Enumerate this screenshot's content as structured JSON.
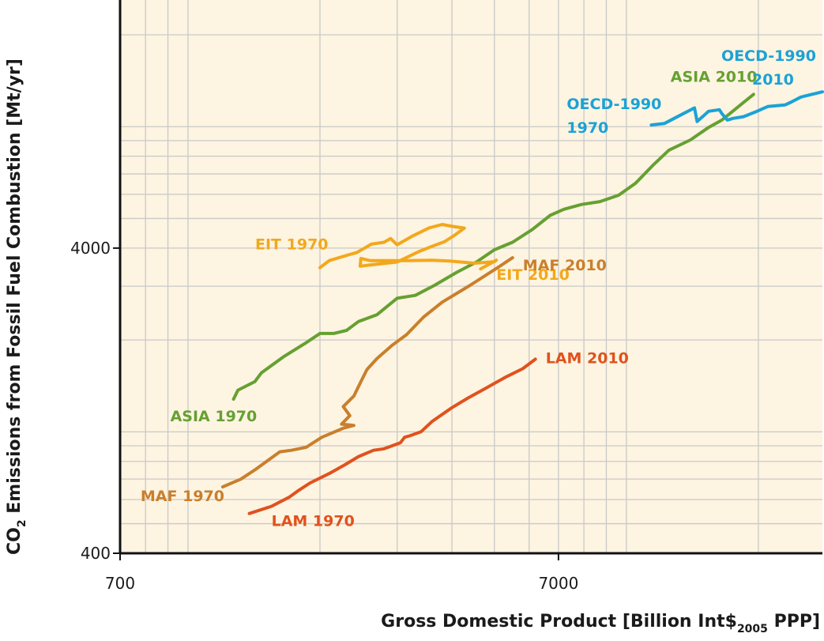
{
  "chart_data": {
    "type": "line",
    "xlabel": "Gross Domestic Product [Billion Int$",
    "xlabel_sub": "2005",
    "xlabel_tail": " PPP]",
    "ylabel_pre": "CO",
    "ylabel_sub": "2",
    "ylabel_post": " Emissions from Fossil Fuel Combustion [Mt/yr]",
    "x_scale": "log",
    "y_scale": "log",
    "xlim": [
      700,
      28000
    ],
    "ylim": [
      400,
      26000
    ],
    "x_ticks": [
      700,
      7000
    ],
    "y_ticks": [
      400,
      4000
    ],
    "grid": true,
    "background": "#fdf4e1",
    "grid_color": "#c9c9c9",
    "series": [
      {
        "name": "ASIA",
        "color": "#66a032",
        "start_label": "ASIA 1970",
        "end_label": "ASIA 2010",
        "x": [
          1270,
          1300,
          1420,
          1470,
          1650,
          1850,
          2000,
          2150,
          2300,
          2450,
          2700,
          3000,
          3300,
          3650,
          4100,
          4550,
          5000,
          5500,
          6100,
          6700,
          7200,
          7900,
          8700,
          9600,
          10500,
          11500,
          12500,
          14000,
          15400,
          16500,
          17500,
          18800,
          19500
        ],
        "y": [
          1280,
          1370,
          1460,
          1560,
          1760,
          1950,
          2100,
          2100,
          2150,
          2300,
          2420,
          2740,
          2800,
          3020,
          3330,
          3600,
          3950,
          4180,
          4600,
          5120,
          5360,
          5560,
          5680,
          5960,
          6530,
          7470,
          8370,
          9050,
          9940,
          10500,
          11240,
          12230,
          12760
        ]
      },
      {
        "name": "OECD-1990",
        "color": "#1ba2d6",
        "start_label": "OECD-1990 1970",
        "end_label": "OECD-1990 2010",
        "x": [
          11400,
          12200,
          13600,
          14300,
          14500,
          15400,
          16300,
          16500,
          17000,
          17500,
          18500,
          19800,
          21000,
          23000,
          23800,
          25000,
          28000
        ],
        "y": [
          10130,
          10240,
          11100,
          11520,
          10390,
          11230,
          11360,
          11040,
          10510,
          10640,
          10780,
          11210,
          11640,
          11780,
          12050,
          12500,
          13000
        ]
      },
      {
        "name": "EIT",
        "color": "#f2a81c",
        "start_label": "EIT 1970",
        "end_label": "EIT 2010",
        "x": [
          2000,
          2100,
          2320,
          2430,
          2520,
          2620,
          2800,
          2900,
          3000,
          3250,
          3550,
          3800,
          4020,
          4270,
          4030,
          3850,
          3600,
          3380,
          3000,
          2600,
          2470,
          2480,
          2600,
          3150,
          3600,
          3950,
          4500,
          5000,
          5050,
          4650
        ],
        "y": [
          3450,
          3640,
          3800,
          3870,
          3990,
          4120,
          4180,
          4300,
          4100,
          4380,
          4660,
          4780,
          4710,
          4650,
          4380,
          4200,
          4050,
          3910,
          3600,
          3520,
          3490,
          3700,
          3640,
          3640,
          3650,
          3630,
          3570,
          3610,
          3650,
          3420
        ]
      },
      {
        "name": "MAF",
        "color": "#c97f2c",
        "start_label": "MAF 1970",
        "end_label": "MAF 2010",
        "x": [
          1200,
          1320,
          1420,
          1620,
          1720,
          1860,
          2020,
          2270,
          2390,
          2240,
          2340,
          2260,
          2390,
          2480,
          2560,
          2700,
          2920,
          3150,
          3450,
          3800,
          4400,
          5100,
          5500
        ],
        "y": [
          660,
          700,
          750,
          860,
          870,
          890,
          960,
          1030,
          1050,
          1060,
          1130,
          1210,
          1310,
          1460,
          1600,
          1740,
          1920,
          2080,
          2380,
          2660,
          3020,
          3460,
          3720
        ]
      },
      {
        "name": "LAM",
        "color": "#e0521e",
        "start_label": "LAM 1970",
        "end_label": "LAM 2010",
        "x": [
          1380,
          1550,
          1700,
          1780,
          1900,
          2100,
          2280,
          2450,
          2650,
          2800,
          3050,
          3120,
          3200,
          3400,
          3600,
          4000,
          4350,
          4780,
          5300,
          5800,
          6000,
          6200
        ],
        "y": [
          540,
          570,
          610,
          640,
          680,
          730,
          780,
          830,
          870,
          880,
          920,
          960,
          970,
          1000,
          1080,
          1200,
          1290,
          1390,
          1510,
          1610,
          1670,
          1730
        ]
      }
    ]
  }
}
